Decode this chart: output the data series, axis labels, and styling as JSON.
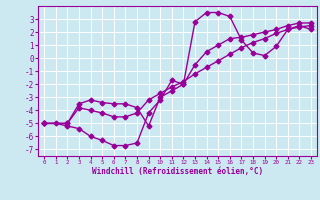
{
  "xlabel": "Windchill (Refroidissement éolien,°C)",
  "bg_color": "#cce8f0",
  "line_color": "#990099",
  "marker": "D",
  "markersize": 2.5,
  "linewidth": 1.0,
  "xlim": [
    -0.5,
    23.5
  ],
  "ylim": [
    -7.5,
    4.0
  ],
  "xticks": [
    0,
    1,
    2,
    3,
    4,
    5,
    6,
    7,
    8,
    9,
    10,
    11,
    12,
    13,
    14,
    15,
    16,
    17,
    18,
    19,
    20,
    21,
    22,
    23
  ],
  "yticks": [
    -7,
    -6,
    -5,
    -4,
    -3,
    -2,
    -1,
    0,
    1,
    2,
    3
  ],
  "series": [
    {
      "x": [
        0,
        1,
        2,
        3,
        4,
        5,
        6,
        7,
        8,
        9,
        10,
        11,
        12,
        13,
        14,
        15,
        16,
        17,
        18,
        19,
        20,
        21,
        22,
        23
      ],
      "y": [
        -5,
        -5,
        -5.2,
        -5.4,
        -6.0,
        -6.3,
        -6.7,
        -6.7,
        -6.5,
        -4.2,
        -3.2,
        -1.7,
        -2.0,
        2.8,
        3.5,
        3.5,
        3.2,
        1.4,
        0.4,
        0.2,
        0.9,
        2.2,
        2.5,
        2.2
      ]
    },
    {
      "x": [
        0,
        2,
        3,
        4,
        5,
        6,
        7,
        8,
        9,
        10,
        11,
        12,
        13,
        14,
        15,
        16,
        17,
        18,
        19,
        20,
        21,
        22,
        23
      ],
      "y": [
        -5,
        -5,
        -3.5,
        -3.2,
        -3.4,
        -3.5,
        -3.5,
        -3.8,
        -5.2,
        -3.0,
        -2.5,
        -2.0,
        -0.5,
        0.5,
        1.0,
        1.5,
        1.6,
        1.8,
        2.0,
        2.2,
        2.5,
        2.7,
        2.7
      ]
    },
    {
      "x": [
        0,
        2,
        3,
        4,
        5,
        6,
        7,
        8,
        9,
        10,
        11,
        12,
        13,
        14,
        15,
        16,
        17,
        18,
        19,
        20,
        21,
        22,
        23
      ],
      "y": [
        -5,
        -5,
        -3.8,
        -4.0,
        -4.2,
        -4.5,
        -4.5,
        -4.2,
        -3.2,
        -2.7,
        -2.2,
        -1.8,
        -1.2,
        -0.7,
        -0.2,
        0.3,
        0.8,
        1.2,
        1.5,
        1.9,
        2.2,
        2.4,
        2.5
      ]
    }
  ]
}
